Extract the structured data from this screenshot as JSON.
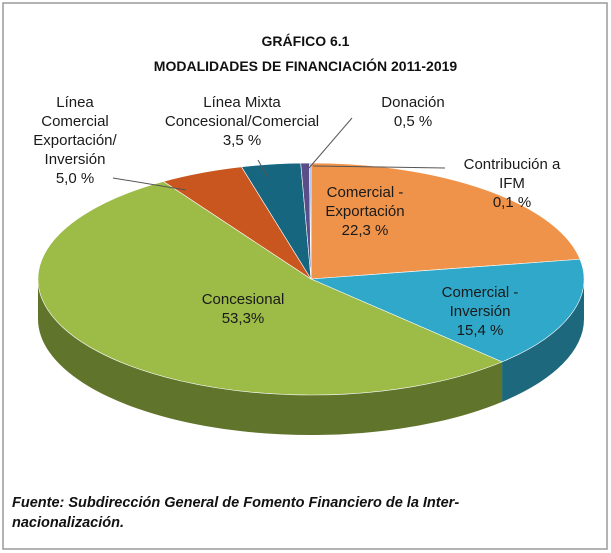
{
  "chart_data": {
    "type": "pie",
    "title": "GRÁFICO 6.1",
    "subtitle": "MODALIDADES DE FINANCIACIÓN 2011-2019",
    "categories": [
      "Comercial -\nExportación",
      "Comercial - Inversión",
      "Concesional",
      "Línea\nComercial\nExportación/\nInversión",
      "Línea Mixta\nConcesional/Comercial",
      "Donación",
      "Contribución a IFM"
    ],
    "values": [
      22.3,
      15.4,
      53.3,
      5.0,
      3.5,
      0.5,
      0.1
    ],
    "value_labels": [
      "22,3 %",
      "15,4 %",
      "53,3%",
      "5,0 %",
      "3,5 %",
      "0,5 %",
      "0,1 %"
    ],
    "colors": [
      "#f0934a",
      "#2fa8c9",
      "#9cbb47",
      "#c9561f",
      "#17667f",
      "#5b4c8a",
      "#8fb0d8"
    ],
    "source": "Fuente: Subdirección General de Fomento Financiero de la Inter-\nnacionalización."
  }
}
